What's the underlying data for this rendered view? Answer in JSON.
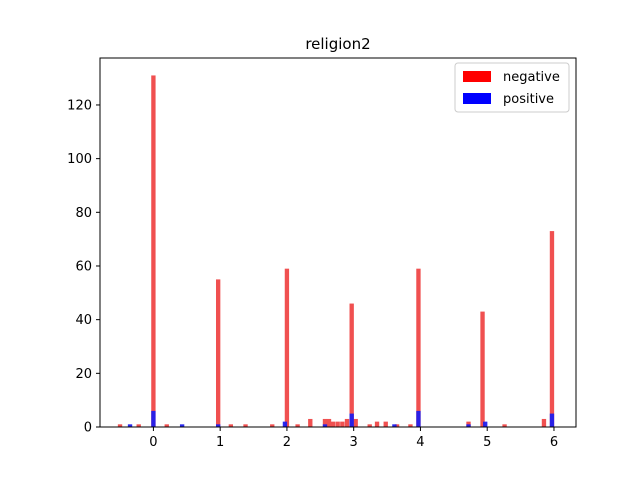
{
  "chart_data": {
    "type": "bar",
    "title": "religion2",
    "xlabel": "",
    "ylabel": "",
    "xlim": [
      -0.8,
      6.33
    ],
    "ylim": [
      0,
      137.5
    ],
    "xticks": [
      0,
      1,
      2,
      3,
      4,
      5,
      6
    ],
    "yticks": [
      0,
      20,
      40,
      60,
      80,
      100,
      120
    ],
    "bar_width": 0.065,
    "legend": "top-right",
    "grid": false,
    "series": [
      {
        "name": "negative",
        "color": "#f05050",
        "legend_color": "#ff0000",
        "x": [
          -0.5,
          -0.22,
          0,
          0.2,
          0.97,
          1.16,
          1.38,
          1.78,
          2.0,
          2.16,
          2.35,
          2.57,
          2.63,
          2.69,
          2.76,
          2.83,
          2.9,
          2.97,
          3.03,
          3.24,
          3.35,
          3.48,
          3.65,
          3.85,
          3.97,
          4.72,
          4.93,
          5.26,
          5.85,
          5.97
        ],
        "values": [
          1,
          1,
          131,
          1,
          55,
          1,
          1,
          1,
          59,
          1,
          3,
          3,
          3,
          2,
          2,
          2,
          3,
          46,
          3,
          1,
          2,
          2,
          1,
          1,
          59,
          2,
          43,
          1,
          3,
          73
        ]
      },
      {
        "name": "positive",
        "color": "#1e1eee",
        "legend_color": "#0000ff",
        "x": [
          -0.35,
          0,
          0.43,
          0.97,
          1.97,
          2.57,
          2.97,
          3.61,
          3.97,
          4.72,
          4.97,
          5.97
        ],
        "values": [
          1,
          6,
          1,
          1,
          2,
          1,
          5,
          1,
          6,
          1,
          2,
          5
        ]
      }
    ]
  }
}
